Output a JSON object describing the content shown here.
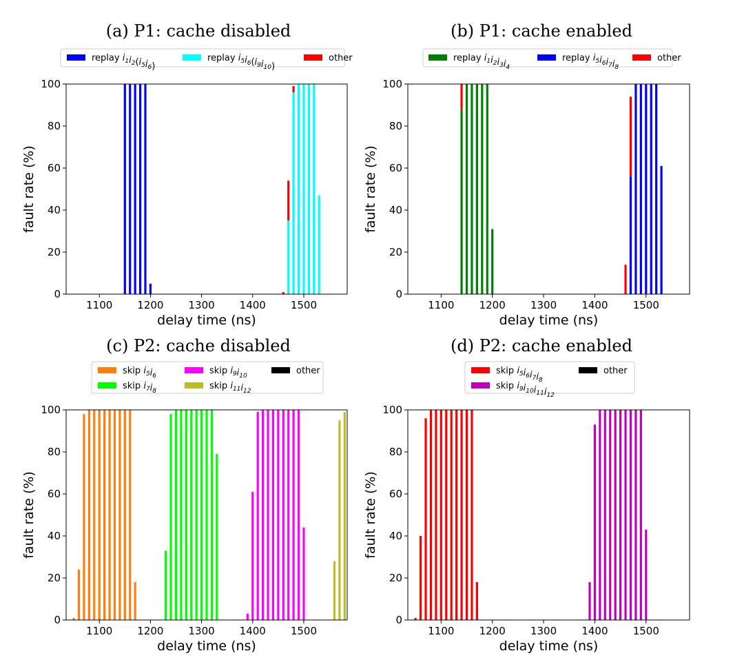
{
  "chart_data": [
    {
      "id": "a",
      "type": "bar",
      "title": "(a) P1: cache disabled",
      "xlabel": "delay time (ns)",
      "ylabel": "fault rate (%)",
      "xlim": [
        1035,
        1585
      ],
      "ylim": [
        0,
        100
      ],
      "xticks": [
        1100,
        1200,
        1300,
        1400,
        1500
      ],
      "yticks": [
        0,
        20,
        40,
        60,
        80,
        100
      ],
      "stacked": true,
      "legend_position": "top",
      "series": [
        {
          "name": "replay i1i2(i5i6)",
          "color": "#0000ff",
          "points": [
            [
              1150,
              100
            ],
            [
              1160,
              100
            ],
            [
              1170,
              100
            ],
            [
              1180,
              100
            ],
            [
              1190,
              100
            ],
            [
              1200,
              5
            ]
          ]
        },
        {
          "name": "replay i5i6(i9i10)",
          "color": "#00ffff",
          "points": [
            [
              1470,
              35
            ],
            [
              1480,
              96
            ],
            [
              1490,
              100
            ],
            [
              1500,
              100
            ],
            [
              1510,
              100
            ],
            [
              1520,
              100
            ],
            [
              1530,
              47
            ]
          ]
        },
        {
          "name": "other",
          "color": "#ff0000",
          "points": [
            [
              1460,
              1
            ],
            [
              1470,
              19
            ],
            [
              1480,
              3
            ]
          ]
        }
      ]
    },
    {
      "id": "b",
      "type": "bar",
      "title": "(b) P1: cache enabled",
      "xlabel": "delay time (ns)",
      "ylabel": "fault rate (%)",
      "xlim": [
        1035,
        1585
      ],
      "ylim": [
        0,
        100
      ],
      "xticks": [
        1100,
        1200,
        1300,
        1400,
        1500
      ],
      "yticks": [
        0,
        20,
        40,
        60,
        80,
        100
      ],
      "stacked": true,
      "legend_position": "top",
      "series": [
        {
          "name": "replay i1i2i3i4",
          "color": "#008000",
          "points": [
            [
              1140,
              88
            ],
            [
              1150,
              100
            ],
            [
              1160,
              100
            ],
            [
              1170,
              100
            ],
            [
              1180,
              100
            ],
            [
              1190,
              100
            ],
            [
              1200,
              31
            ]
          ]
        },
        {
          "name": "replay i5i6i7i8",
          "color": "#0000ff",
          "points": [
            [
              1470,
              56
            ],
            [
              1480,
              100
            ],
            [
              1490,
              100
            ],
            [
              1500,
              100
            ],
            [
              1510,
              100
            ],
            [
              1520,
              100
            ],
            [
              1530,
              61
            ]
          ]
        },
        {
          "name": "other",
          "color": "#ff0000",
          "points": [
            [
              1140,
              12
            ],
            [
              1460,
              14
            ],
            [
              1470,
              38
            ]
          ]
        }
      ]
    },
    {
      "id": "c",
      "type": "bar",
      "title": "(c) P2: cache disabled",
      "xlabel": "delay time (ns)",
      "ylabel": "fault rate (%)",
      "xlim": [
        1035,
        1585
      ],
      "ylim": [
        0,
        100
      ],
      "xticks": [
        1100,
        1200,
        1300,
        1400,
        1500
      ],
      "yticks": [
        0,
        20,
        40,
        60,
        80,
        100
      ],
      "stacked": true,
      "legend_position": "top",
      "series": [
        {
          "name": "skip i5i6",
          "color": "#ff7f0e",
          "points": [
            [
              1050,
              1
            ],
            [
              1060,
              24
            ],
            [
              1070,
              98
            ],
            [
              1080,
              100
            ],
            [
              1090,
              100
            ],
            [
              1100,
              100
            ],
            [
              1110,
              100
            ],
            [
              1120,
              100
            ],
            [
              1130,
              100
            ],
            [
              1140,
              100
            ],
            [
              1150,
              100
            ],
            [
              1160,
              100
            ],
            [
              1170,
              18
            ]
          ]
        },
        {
          "name": "skip i7i8",
          "color": "#00ff00",
          "points": [
            [
              1230,
              33
            ],
            [
              1240,
              98
            ],
            [
              1250,
              100
            ],
            [
              1260,
              100
            ],
            [
              1270,
              100
            ],
            [
              1280,
              100
            ],
            [
              1290,
              100
            ],
            [
              1300,
              100
            ],
            [
              1310,
              100
            ],
            [
              1320,
              100
            ],
            [
              1330,
              79
            ]
          ]
        },
        {
          "name": "skip i9i10",
          "color": "#ff00ff",
          "points": [
            [
              1390,
              3
            ],
            [
              1400,
              61
            ],
            [
              1410,
              99
            ],
            [
              1420,
              100
            ],
            [
              1430,
              100
            ],
            [
              1440,
              100
            ],
            [
              1450,
              100
            ],
            [
              1460,
              100
            ],
            [
              1470,
              100
            ],
            [
              1480,
              100
            ],
            [
              1490,
              100
            ],
            [
              1500,
              44
            ]
          ]
        },
        {
          "name": "skip i11i12",
          "color": "#bcbd22",
          "points": [
            [
              1560,
              28
            ],
            [
              1570,
              95
            ],
            [
              1580,
              99
            ]
          ]
        },
        {
          "name": "other",
          "color": "#000000",
          "points": []
        }
      ]
    },
    {
      "id": "d",
      "type": "bar",
      "title": "(d) P2: cache enabled",
      "xlabel": "delay time (ns)",
      "ylabel": "fault rate (%)",
      "xlim": [
        1035,
        1585
      ],
      "ylim": [
        0,
        100
      ],
      "xticks": [
        1100,
        1200,
        1300,
        1400,
        1500
      ],
      "yticks": [
        0,
        20,
        40,
        60,
        80,
        100
      ],
      "stacked": true,
      "legend_position": "top",
      "series": [
        {
          "name": "skip i5i6i7i8",
          "color": "#ff0000",
          "points": [
            [
              1050,
              1
            ],
            [
              1060,
              40
            ],
            [
              1070,
              96
            ],
            [
              1080,
              100
            ],
            [
              1090,
              100
            ],
            [
              1100,
              100
            ],
            [
              1110,
              100
            ],
            [
              1120,
              100
            ],
            [
              1130,
              100
            ],
            [
              1140,
              100
            ],
            [
              1150,
              100
            ],
            [
              1160,
              100
            ],
            [
              1170,
              18
            ]
          ]
        },
        {
          "name": "skip i9i10i11i12",
          "color": "#bf00bf",
          "points": [
            [
              1390,
              18
            ],
            [
              1400,
              93
            ],
            [
              1410,
              100
            ],
            [
              1420,
              100
            ],
            [
              1430,
              100
            ],
            [
              1440,
              100
            ],
            [
              1450,
              100
            ],
            [
              1460,
              100
            ],
            [
              1470,
              100
            ],
            [
              1480,
              100
            ],
            [
              1490,
              100
            ],
            [
              1500,
              43
            ]
          ]
        },
        {
          "name": "other",
          "color": "#000000",
          "points": []
        }
      ]
    }
  ],
  "legends": {
    "a": [
      {
        "parts": [
          [
            "replay ",
            ""
          ],
          [
            "i",
            "1"
          ],
          [
            "i",
            "2"
          ],
          [
            "(",
            ""
          ],
          [
            "i",
            "5"
          ],
          [
            "i",
            "6"
          ],
          [
            ")",
            ""
          ]
        ],
        "color": "#0000ff"
      },
      {
        "parts": [
          [
            "replay ",
            ""
          ],
          [
            "i",
            "5"
          ],
          [
            "i",
            "6"
          ],
          [
            "(",
            ""
          ],
          [
            "i",
            "9"
          ],
          [
            "i",
            "10"
          ],
          [
            ")",
            ""
          ]
        ],
        "color": "#00ffff"
      },
      {
        "parts": [
          [
            "other",
            ""
          ]
        ],
        "color": "#ff0000"
      }
    ],
    "b": [
      {
        "parts": [
          [
            "replay ",
            ""
          ],
          [
            "i",
            "1"
          ],
          [
            "i",
            "2"
          ],
          [
            "i",
            "3"
          ],
          [
            "i",
            "4"
          ]
        ],
        "color": "#008000"
      },
      {
        "parts": [
          [
            "replay ",
            ""
          ],
          [
            "i",
            "5"
          ],
          [
            "i",
            "6"
          ],
          [
            "i",
            "7"
          ],
          [
            "i",
            "8"
          ]
        ],
        "color": "#0000ff"
      },
      {
        "parts": [
          [
            "other",
            ""
          ]
        ],
        "color": "#ff0000"
      }
    ],
    "c": [
      {
        "parts": [
          [
            "skip ",
            ""
          ],
          [
            "i",
            "5"
          ],
          [
            "i",
            "6"
          ]
        ],
        "color": "#ff7f0e"
      },
      {
        "parts": [
          [
            "skip ",
            ""
          ],
          [
            "i",
            "9"
          ],
          [
            "i",
            "10"
          ]
        ],
        "color": "#ff00ff"
      },
      {
        "parts": [
          [
            "other",
            ""
          ]
        ],
        "color": "#000000"
      },
      {
        "parts": [
          [
            "skip ",
            ""
          ],
          [
            "i",
            "7"
          ],
          [
            "i",
            "8"
          ]
        ],
        "color": "#00ff00"
      },
      {
        "parts": [
          [
            "skip ",
            ""
          ],
          [
            "i",
            "11"
          ],
          [
            "i",
            "12"
          ]
        ],
        "color": "#bcbd22"
      }
    ],
    "d": [
      {
        "parts": [
          [
            "skip ",
            ""
          ],
          [
            "i",
            "5"
          ],
          [
            "i",
            "6"
          ],
          [
            "i",
            "7"
          ],
          [
            "i",
            "8"
          ]
        ],
        "color": "#ff0000"
      },
      {
        "parts": [
          [
            "other",
            ""
          ]
        ],
        "color": "#000000"
      },
      {
        "parts": [
          [
            "skip ",
            ""
          ],
          [
            "i",
            "9"
          ],
          [
            "i",
            "10"
          ],
          [
            "i",
            "11"
          ],
          [
            "i",
            "12"
          ]
        ],
        "color": "#bf00bf"
      }
    ]
  }
}
